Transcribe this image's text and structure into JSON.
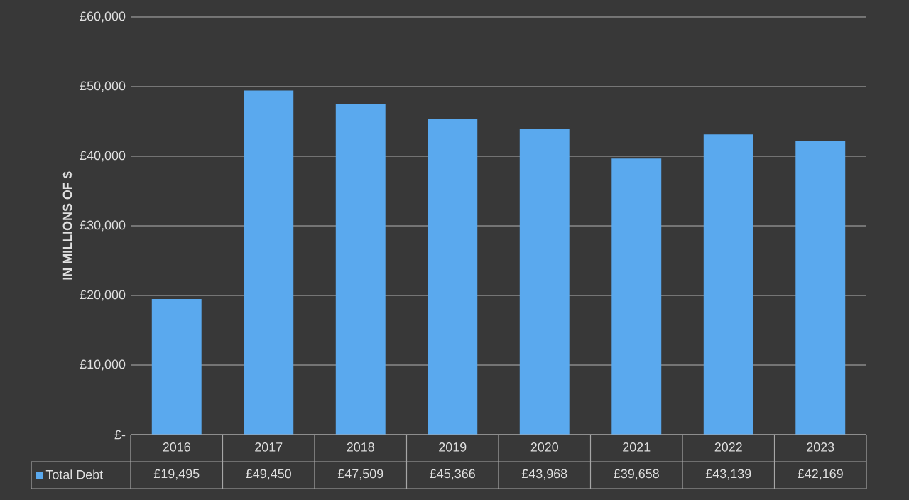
{
  "chart_data": {
    "type": "bar",
    "ylabel": "IN MILLIONS OF $",
    "categories": [
      "2016",
      "2017",
      "2018",
      "2019",
      "2020",
      "2021",
      "2022",
      "2023"
    ],
    "series": [
      {
        "name": "Total Debt",
        "color": "#5aa9ee",
        "values": [
          19495,
          49450,
          47509,
          45366,
          43968,
          39658,
          43139,
          42169
        ],
        "value_labels": [
          "£19,495",
          "£49,450",
          "£47,509",
          "£45,366",
          "£43,968",
          "£39,658",
          "£43,139",
          "£42,169"
        ]
      }
    ],
    "ylim": [
      0,
      60000
    ],
    "yticks": [
      {
        "value": 0,
        "label": "£-"
      },
      {
        "value": 10000,
        "label": "£10,000"
      },
      {
        "value": 20000,
        "label": "£20,000"
      },
      {
        "value": 30000,
        "label": "£30,000"
      },
      {
        "value": 40000,
        "label": "£40,000"
      },
      {
        "value": 50000,
        "label": "£50,000"
      },
      {
        "value": 60000,
        "label": "£60,000"
      }
    ],
    "grid": "y",
    "legend": "bottom"
  }
}
